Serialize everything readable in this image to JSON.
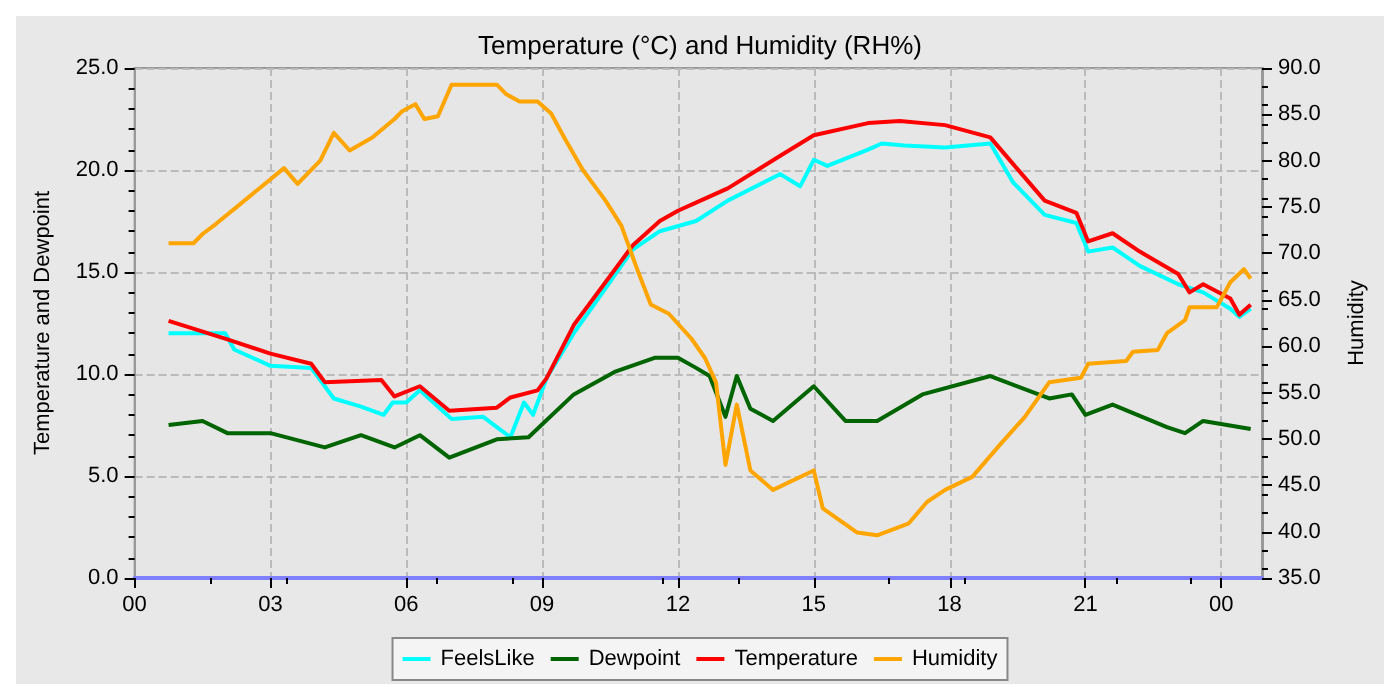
{
  "chart_data": {
    "type": "line",
    "title": "Temperature (°C) and Humidity (RH%)",
    "ylabel": "Temperature and Dewpoint",
    "y2label": "Humidity",
    "xlim": [
      0,
      24.9
    ],
    "xticks": [
      {
        "value": 0,
        "label": "00"
      },
      {
        "value": 3,
        "label": "03"
      },
      {
        "value": 6,
        "label": "06"
      },
      {
        "value": 9,
        "label": "09"
      },
      {
        "value": 12,
        "label": "12"
      },
      {
        "value": 15,
        "label": "15"
      },
      {
        "value": 18,
        "label": "18"
      },
      {
        "value": 21,
        "label": "21"
      },
      {
        "value": 24,
        "label": "00"
      }
    ],
    "ylim": [
      0,
      25
    ],
    "yticks": [
      {
        "value": 0,
        "label": "0.0"
      },
      {
        "value": 5,
        "label": "5.0"
      },
      {
        "value": 10,
        "label": "10.0"
      },
      {
        "value": 15,
        "label": "15.0"
      },
      {
        "value": 20,
        "label": "20.0"
      },
      {
        "value": 25,
        "label": "25.0"
      }
    ],
    "y2lim": [
      35,
      90
    ],
    "y2ticks": [
      {
        "value": 35,
        "label": "35.0"
      },
      {
        "value": 40,
        "label": "40.0"
      },
      {
        "value": 45,
        "label": "45.0"
      },
      {
        "value": 50,
        "label": "50.0"
      },
      {
        "value": 55,
        "label": "55.0"
      },
      {
        "value": 60,
        "label": "60.0"
      },
      {
        "value": 65,
        "label": "65.0"
      },
      {
        "value": 70,
        "label": "70.0"
      },
      {
        "value": 75,
        "label": "75.0"
      },
      {
        "value": 80,
        "label": "80.0"
      },
      {
        "value": 85,
        "label": "85.0"
      },
      {
        "value": 90,
        "label": "90.0"
      }
    ],
    "grid": true,
    "legend": "bottom",
    "marker": "none",
    "line_style": "solid",
    "series": [
      {
        "name": "FeelsLike",
        "color": "#00ffff",
        "x": [
          0.75,
          2.0,
          2.2,
          3.0,
          3.9,
          4.4,
          5.0,
          5.5,
          5.7,
          6.0,
          6.3,
          6.8,
          7.0,
          7.7,
          8.0,
          8.3,
          8.6,
          8.8,
          9.1,
          9.7,
          10.4,
          11.0,
          11.6,
          12.4,
          13.1,
          14.26,
          14.7,
          15.0,
          15.3,
          16.2,
          16.5,
          17.0,
          17.9,
          18.9,
          19.4,
          20.1,
          20.8,
          21.06,
          21.6,
          22.2,
          23.05,
          23.6,
          24.2,
          24.4,
          24.65
        ],
        "values": [
          12.0,
          12.0,
          11.2,
          10.4,
          10.3,
          8.8,
          8.4,
          8.0,
          8.6,
          8.6,
          9.2,
          8.2,
          7.8,
          7.9,
          7.4,
          6.9,
          8.6,
          8.0,
          9.8,
          12.0,
          14.2,
          16.1,
          17.0,
          17.5,
          18.5,
          19.8,
          19.2,
          20.5,
          20.2,
          21.0,
          21.3,
          21.2,
          21.1,
          21.3,
          19.4,
          17.8,
          17.4,
          16.0,
          16.2,
          15.3,
          14.4,
          14.0,
          13.2,
          12.8,
          13.2
        ]
      },
      {
        "name": "Dewpoint",
        "color": "#006400",
        "x": [
          0.75,
          1.5,
          2.05,
          3.0,
          4.2,
          5.0,
          5.74,
          6.3,
          6.95,
          8.0,
          8.7,
          9.7,
          10.6,
          11.5,
          12.0,
          12.4,
          12.7,
          13.05,
          13.3,
          13.6,
          14.1,
          15.0,
          15.7,
          16.4,
          17.4,
          18.9,
          20.2,
          20.7,
          21.0,
          21.6,
          22.8,
          23.2,
          23.6,
          24.65
        ],
        "values": [
          7.5,
          7.7,
          7.1,
          7.1,
          6.4,
          7.0,
          6.4,
          7.0,
          5.9,
          6.8,
          6.9,
          9.0,
          10.1,
          10.8,
          10.8,
          10.3,
          9.9,
          7.9,
          9.9,
          8.3,
          7.7,
          9.4,
          7.7,
          7.7,
          9.0,
          9.9,
          8.8,
          9.0,
          8.0,
          8.5,
          7.4,
          7.1,
          7.7,
          7.3
        ]
      },
      {
        "name": "Temperature",
        "color": "#ff0000",
        "x": [
          0.75,
          2.05,
          3.0,
          3.9,
          4.2,
          5.45,
          5.74,
          6.3,
          6.95,
          8.0,
          8.3,
          8.9,
          9.1,
          9.7,
          10.4,
          11.0,
          11.6,
          12.0,
          12.4,
          13.1,
          14.26,
          15.0,
          16.2,
          16.9,
          17.9,
          18.9,
          19.4,
          20.1,
          20.8,
          21.06,
          21.6,
          22.2,
          23.05,
          23.3,
          23.6,
          24.2,
          24.4,
          24.65
        ],
        "values": [
          12.6,
          11.7,
          11.0,
          10.5,
          9.6,
          9.7,
          8.9,
          9.4,
          8.2,
          8.35,
          8.85,
          9.2,
          9.8,
          12.4,
          14.5,
          16.3,
          17.5,
          18.0,
          18.4,
          19.1,
          20.7,
          21.7,
          22.3,
          22.4,
          22.2,
          21.6,
          20.3,
          18.5,
          17.9,
          16.5,
          16.9,
          16.0,
          14.9,
          14.0,
          14.4,
          13.7,
          12.9,
          13.4
        ]
      },
      {
        "name": "Humidity",
        "color": "#ffa500",
        "axis": "y2",
        "x": [
          0.75,
          1.3,
          1.5,
          1.8,
          2.25,
          2.8,
          3.3,
          3.6,
          4.1,
          4.4,
          4.75,
          5.25,
          5.74,
          5.9,
          6.2,
          6.4,
          6.7,
          7.0,
          8.0,
          8.2,
          8.5,
          8.9,
          9.2,
          9.5,
          9.9,
          10.4,
          10.75,
          11.1,
          11.4,
          11.8,
          12.3,
          12.6,
          12.84,
          13.05,
          13.3,
          13.6,
          14.1,
          15.0,
          15.2,
          15.96,
          16.4,
          17.1,
          17.5,
          17.9,
          18.5,
          19.1,
          19.65,
          20.2,
          20.9,
          21.06,
          21.9,
          22.05,
          22.6,
          22.8,
          23.2,
          23.3,
          23.9,
          24.2,
          24.5,
          24.65
        ],
        "values": [
          71.1,
          71.1,
          72.1,
          73.2,
          75.0,
          77.2,
          79.2,
          77.5,
          80.0,
          83.0,
          81.1,
          82.5,
          84.5,
          85.3,
          86.1,
          84.5,
          84.8,
          88.2,
          88.2,
          87.2,
          86.4,
          86.4,
          85.1,
          82.4,
          79.0,
          75.7,
          73.0,
          68.3,
          64.5,
          63.5,
          60.8,
          58.7,
          56.1,
          47.2,
          53.7,
          46.6,
          44.5,
          46.6,
          42.5,
          39.9,
          39.6,
          40.9,
          43.2,
          44.5,
          45.9,
          49.3,
          52.3,
          56.1,
          56.6,
          58.1,
          58.4,
          59.4,
          59.6,
          61.4,
          62.8,
          64.2,
          64.2,
          66.9,
          68.3,
          67.3
        ]
      }
    ]
  }
}
